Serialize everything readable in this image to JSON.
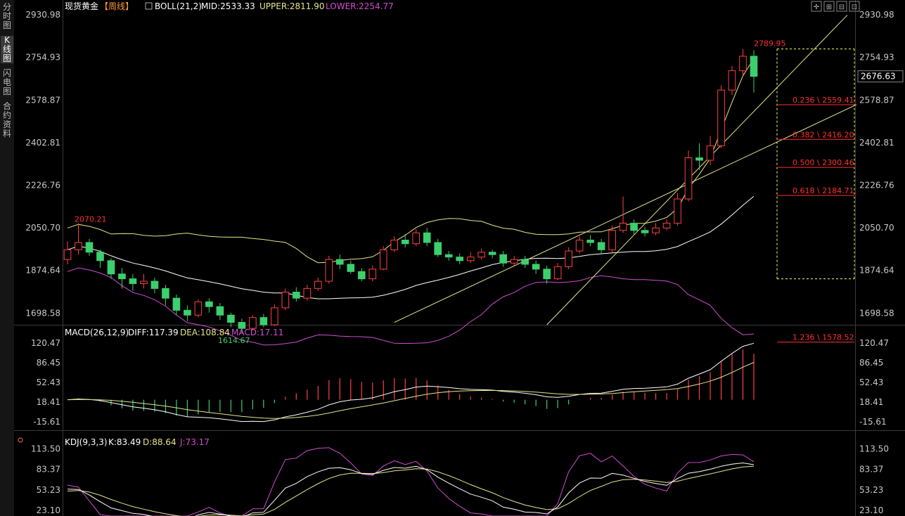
{
  "sidebar": {
    "tabs": [
      {
        "label": "分时图",
        "active": false
      },
      {
        "label": "K线图",
        "active": true
      },
      {
        "label": "闪电图",
        "active": false
      },
      {
        "label": "合约资料",
        "active": false
      }
    ]
  },
  "toolbar": {
    "icons": [
      "crosshair-icon",
      "zoom-in-icon",
      "zoom-out-icon",
      "fullscreen-icon"
    ],
    "glyphs": [
      "✛",
      "⊞",
      "⊟",
      "⊡"
    ]
  },
  "main": {
    "instrument": "现货黄金",
    "period": "【周线】",
    "boll": {
      "label": "BOLL(21,2)",
      "mid": "MID:2533.33",
      "upper": "UPPER:2811.90",
      "lower": "LOWER:2254.77"
    },
    "y_ticks": [
      "2930.98",
      "2754.93",
      "2578.87",
      "2402.81",
      "2226.76",
      "2050.70",
      "1874.64",
      "1698.58"
    ],
    "current_price": "2676.63",
    "high_label": "2789.95",
    "high_left_label": "2070.21",
    "low_label": "1614.67",
    "fib_levels": [
      {
        "label": "0.236 \\ 2559.41",
        "value": 2559.41
      },
      {
        "label": "0.382 \\ 2416.20",
        "value": 2416.2
      },
      {
        "label": "0.500 \\ 2300.46",
        "value": 2300.46
      },
      {
        "label": "0.618 \\ 2184.71",
        "value": 2184.71
      },
      {
        "label": "1.236 \\ 1578.52",
        "value": 1578.52
      }
    ]
  },
  "macd": {
    "label": "MACD(26,12,9)",
    "diff": "DIFF:117.39",
    "dea": "DEA:108.84",
    "macd": "MACD:17.11",
    "y_ticks": [
      "120.47",
      "86.45",
      "52.43",
      "18.41",
      "-15.61"
    ]
  },
  "kdj": {
    "label": "KDJ(9,3,3)",
    "k": "K:83.49",
    "d": "D:88.64",
    "j": "J:73.17",
    "y_ticks": [
      "113.50",
      "83.37",
      "53.23",
      "23.10"
    ]
  },
  "colors": {
    "up": "#ff4040",
    "down": "#3ccf6e",
    "mid_line": "#ffffff",
    "upper_line": "#e6e68a",
    "lower_line": "#d24cd2",
    "fib": "#ff3030",
    "trend": "#e6e68a",
    "axis": "#c8c8c8",
    "diff": "#ffffff",
    "dea": "#e6e68a",
    "j_line": "#d24cd2"
  },
  "chart_data": {
    "type": "candlestick",
    "title": "现货黄金【周线】",
    "ylim": [
      1650,
      2940
    ],
    "x": [
      2,
      6,
      10,
      14,
      18,
      22,
      26,
      30,
      34,
      38,
      42,
      46,
      50,
      54,
      58,
      62,
      66,
      70,
      74,
      78,
      82,
      86,
      90,
      94,
      98,
      102,
      106,
      110,
      114,
      118,
      122,
      126,
      130,
      134,
      138,
      142,
      146,
      150,
      154,
      158,
      162,
      166,
      170,
      174,
      178,
      182,
      186,
      190,
      194,
      198,
      202,
      206,
      210,
      214,
      218,
      222,
      226,
      230,
      234,
      238,
      242,
      246,
      250,
      254
    ],
    "candles": [
      [
        1920,
        1960,
        1900,
        1995
      ],
      [
        1960,
        1990,
        1940,
        2070
      ],
      [
        1990,
        1950,
        1935,
        2005
      ],
      [
        1950,
        1915,
        1885,
        1960
      ],
      [
        1915,
        1860,
        1840,
        1925
      ],
      [
        1860,
        1840,
        1800,
        1885
      ],
      [
        1840,
        1820,
        1790,
        1860
      ],
      [
        1820,
        1830,
        1800,
        1860
      ],
      [
        1830,
        1800,
        1780,
        1845
      ],
      [
        1800,
        1760,
        1730,
        1815
      ],
      [
        1760,
        1710,
        1690,
        1775
      ],
      [
        1710,
        1690,
        1665,
        1730
      ],
      [
        1690,
        1745,
        1680,
        1755
      ],
      [
        1745,
        1725,
        1700,
        1760
      ],
      [
        1725,
        1690,
        1670,
        1740
      ],
      [
        1690,
        1660,
        1640,
        1700
      ],
      [
        1660,
        1635,
        1614,
        1675
      ],
      [
        1635,
        1680,
        1625,
        1690
      ],
      [
        1680,
        1650,
        1640,
        1695
      ],
      [
        1650,
        1720,
        1645,
        1735
      ],
      [
        1720,
        1785,
        1710,
        1800
      ],
      [
        1785,
        1760,
        1745,
        1805
      ],
      [
        1760,
        1800,
        1750,
        1815
      ],
      [
        1800,
        1830,
        1790,
        1845
      ],
      [
        1830,
        1920,
        1820,
        1935
      ],
      [
        1920,
        1900,
        1880,
        1940
      ],
      [
        1900,
        1870,
        1860,
        1915
      ],
      [
        1870,
        1840,
        1830,
        1885
      ],
      [
        1840,
        1880,
        1830,
        1895
      ],
      [
        1880,
        1960,
        1875,
        1975
      ],
      [
        1960,
        2000,
        1950,
        2015
      ],
      [
        2000,
        1985,
        1970,
        2025
      ],
      [
        1985,
        2030,
        1975,
        2045
      ],
      [
        2030,
        1990,
        1975,
        2050
      ],
      [
        1990,
        1940,
        1930,
        2005
      ],
      [
        1940,
        1930,
        1915,
        1955
      ],
      [
        1930,
        1915,
        1900,
        1945
      ],
      [
        1915,
        1930,
        1905,
        1950
      ],
      [
        1930,
        1950,
        1920,
        1965
      ],
      [
        1950,
        1940,
        1925,
        1960
      ],
      [
        1940,
        1905,
        1890,
        1955
      ],
      [
        1905,
        1920,
        1895,
        1935
      ],
      [
        1920,
        1900,
        1885,
        1935
      ],
      [
        1900,
        1880,
        1860,
        1915
      ],
      [
        1880,
        1840,
        1820,
        1895
      ],
      [
        1840,
        1890,
        1835,
        1905
      ],
      [
        1890,
        1955,
        1880,
        1970
      ],
      [
        1955,
        2000,
        1945,
        2015
      ],
      [
        2000,
        1990,
        1975,
        2020
      ],
      [
        1990,
        1960,
        1940,
        2005
      ],
      [
        1960,
        2040,
        1950,
        2060
      ],
      [
        2040,
        2070,
        2030,
        2180
      ],
      [
        2070,
        2040,
        2020,
        2085
      ],
      [
        2040,
        2030,
        2015,
        2055
      ],
      [
        2030,
        2050,
        2020,
        2070
      ],
      [
        2050,
        2070,
        2040,
        2085
      ],
      [
        2070,
        2170,
        2060,
        2195
      ],
      [
        2170,
        2340,
        2160,
        2370
      ],
      [
        2340,
        2330,
        2290,
        2400
      ],
      [
        2330,
        2390,
        2310,
        2430
      ],
      [
        2390,
        2620,
        2380,
        2640
      ],
      [
        2620,
        2700,
        2600,
        2720
      ],
      [
        2700,
        2760,
        2680,
        2790
      ],
      [
        2760,
        2676.63,
        2610,
        2785
      ]
    ]
  }
}
